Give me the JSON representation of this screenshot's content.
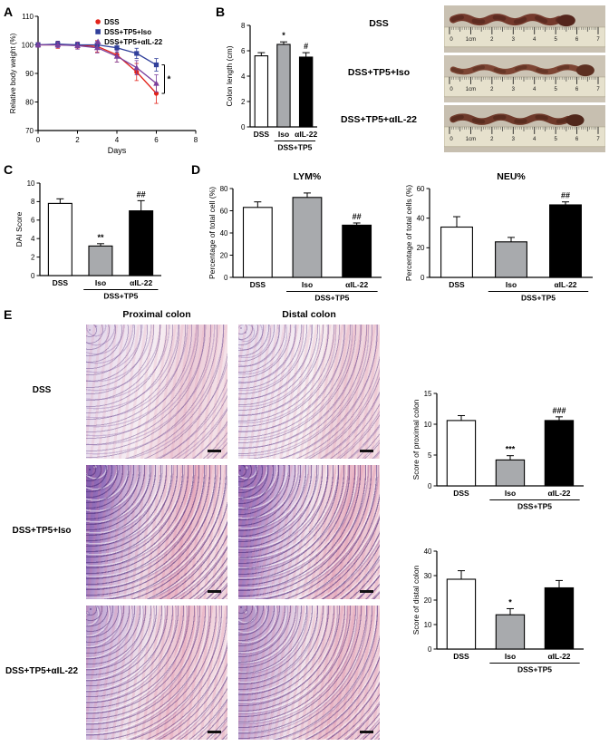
{
  "panel_labels": {
    "A": "A",
    "B": "B",
    "C": "C",
    "D": "D",
    "E": "E"
  },
  "photos": {
    "labels": [
      "DSS",
      "DSS+TP5+Iso",
      "DSS+TP5+αIL-22"
    ],
    "ruler_marks": [
      "0",
      "1cm",
      "2",
      "3",
      "4",
      "5",
      "6",
      "7"
    ]
  },
  "histology": {
    "column_headers": [
      "Proximal colon",
      "Distal colon"
    ],
    "row_labels": [
      "DSS",
      "DSS+TP5+Iso",
      "DSS+TP5+αIL-22"
    ]
  },
  "colors": {
    "dss_red": "#e2231a",
    "iso_blue": "#31409b",
    "ail22_purple": "#7a3f9d",
    "bar_white": "#ffffff",
    "bar_gray": "#a8aaad",
    "bar_black": "#000000"
  },
  "chart_data": [
    {
      "id": "weight",
      "type": "line",
      "xlabel": "Days",
      "ylabel": "Relative body weight (%)",
      "xlim": [
        0,
        8
      ],
      "ylim": [
        70,
        110
      ],
      "xticks": [
        0,
        2,
        4,
        6,
        8
      ],
      "yticks": [
        70,
        80,
        90,
        100,
        110
      ],
      "x": [
        0,
        1,
        2,
        3,
        4,
        5,
        6
      ],
      "series": [
        {
          "name": "DSS",
          "color": "#e2231a",
          "marker": "circle",
          "values": [
            100,
            100,
            99.8,
            99.5,
            96.5,
            90.5,
            83
          ],
          "errors": [
            0.8,
            1.2,
            1.2,
            2,
            2.5,
            3,
            3.5
          ]
        },
        {
          "name": "DSS+TP5+Iso",
          "color": "#31409b",
          "marker": "square",
          "values": [
            100,
            100.3,
            100,
            100,
            99,
            97,
            93
          ],
          "errors": [
            0.8,
            1,
            1,
            1.2,
            1.5,
            1.8,
            2.2
          ]
        },
        {
          "name": "DSS+TP5+αIL-22",
          "color": "#7a3f9d",
          "marker": "triangle",
          "values": [
            100,
            100,
            99.7,
            99,
            96,
            92,
            86.5
          ],
          "errors": [
            0.8,
            1,
            1.2,
            1.8,
            2,
            2.5,
            3
          ]
        }
      ],
      "sig_label": "*",
      "legend_position": "top-right"
    },
    {
      "id": "colon_length",
      "type": "bar",
      "ylabel": "Colon length (cm)",
      "ylim": [
        0,
        8
      ],
      "yticks": [
        0,
        2,
        4,
        6,
        8
      ],
      "categories": [
        "DSS",
        "Iso",
        "αIL-22"
      ],
      "values": [
        5.6,
        6.5,
        5.5
      ],
      "errors": [
        0.25,
        0.2,
        0.35
      ],
      "bar_colors": [
        "#ffffff",
        "#a8aaad",
        "#000000"
      ],
      "sig": [
        "",
        "*",
        "#"
      ],
      "group_label": "DSS+TP5"
    },
    {
      "id": "dai",
      "type": "bar",
      "ylabel": "DAI Score",
      "ylim": [
        0,
        10
      ],
      "yticks": [
        0,
        2,
        4,
        6,
        8,
        10
      ],
      "categories": [
        "DSS",
        "Iso",
        "αIL-22"
      ],
      "values": [
        7.8,
        3.2,
        7.0
      ],
      "errors": [
        0.5,
        0.25,
        1.1
      ],
      "bar_colors": [
        "#ffffff",
        "#a8aaad",
        "#000000"
      ],
      "sig": [
        "",
        "**",
        "##"
      ],
      "group_label": "DSS+TP5"
    },
    {
      "id": "lym",
      "type": "bar",
      "title": "LYM%",
      "ylabel": "Percentage of total cell (%)",
      "ylim": [
        0,
        80
      ],
      "yticks": [
        0,
        20,
        40,
        60,
        80
      ],
      "categories": [
        "DSS",
        "Iso",
        "αIL-22"
      ],
      "values": [
        63,
        72,
        47
      ],
      "errors": [
        5,
        4,
        2
      ],
      "bar_colors": [
        "#ffffff",
        "#a8aaad",
        "#000000"
      ],
      "sig": [
        "",
        "",
        "##"
      ],
      "group_label": "DSS+TP5"
    },
    {
      "id": "neu",
      "type": "bar",
      "title": "NEU%",
      "ylabel": "Percentage of total cells (%)",
      "ylim": [
        0,
        60
      ],
      "yticks": [
        0,
        20,
        40,
        60
      ],
      "categories": [
        "DSS",
        "Iso",
        "αIL-22"
      ],
      "values": [
        34,
        24,
        49
      ],
      "errors": [
        7,
        3,
        2
      ],
      "bar_colors": [
        "#ffffff",
        "#a8aaad",
        "#000000"
      ],
      "sig": [
        "",
        "",
        "##"
      ],
      "group_label": "DSS+TP5"
    },
    {
      "id": "prox_score",
      "type": "bar",
      "ylabel": "Score of proximal colon",
      "ylim": [
        0,
        15
      ],
      "yticks": [
        0,
        5,
        10,
        15
      ],
      "categories": [
        "DSS",
        "Iso",
        "αIL-22"
      ],
      "values": [
        10.6,
        4.2,
        10.6
      ],
      "errors": [
        0.8,
        0.7,
        0.6
      ],
      "bar_colors": [
        "#ffffff",
        "#a8aaad",
        "#000000"
      ],
      "sig": [
        "",
        "***",
        "###"
      ],
      "group_label": "DSS+TP5"
    },
    {
      "id": "dist_score",
      "type": "bar",
      "ylabel": "Score of distal colon",
      "ylim": [
        0,
        40
      ],
      "yticks": [
        0,
        10,
        20,
        30,
        40
      ],
      "categories": [
        "DSS",
        "Iso",
        "αIL-22"
      ],
      "values": [
        28.5,
        14,
        25
      ],
      "errors": [
        3.5,
        2.5,
        3
      ],
      "bar_colors": [
        "#ffffff",
        "#a8aaad",
        "#000000"
      ],
      "sig": [
        "",
        "*",
        ""
      ],
      "group_label": "DSS+TP5"
    }
  ]
}
